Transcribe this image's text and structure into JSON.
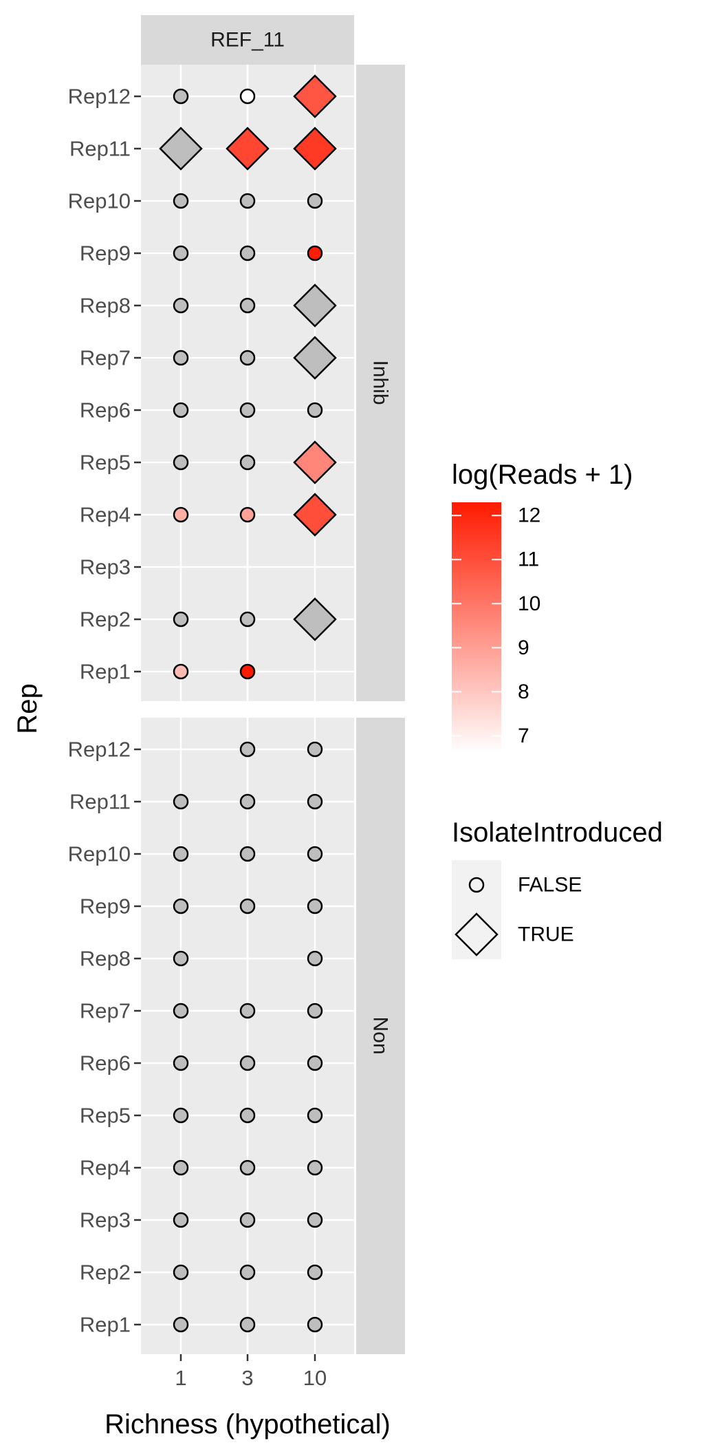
{
  "chart_data": {
    "type": "scatter",
    "facet_column_label": "REF_11",
    "facet_rows": [
      "Inhib",
      "Non"
    ],
    "x_categories": [
      "1",
      "3",
      "10"
    ],
    "y_categories": [
      "Rep1",
      "Rep2",
      "Rep3",
      "Rep4",
      "Rep5",
      "Rep6",
      "Rep7",
      "Rep8",
      "Rep9",
      "Rep10",
      "Rep11",
      "Rep12"
    ],
    "xlabel": "Richness (hypothetical)",
    "ylabel": "Rep",
    "grid": true,
    "legend_position": "right",
    "color_legend": {
      "title": "log(Reads + 1)",
      "ticks": [
        7,
        8,
        9,
        10,
        11,
        12
      ],
      "range": [
        6.6,
        12.3
      ],
      "low_color": "#ffffff",
      "high_color": "#ff1a00",
      "na_color": "#bebebe"
    },
    "shape_legend": {
      "title": "IsolateIntroduced",
      "items": [
        {
          "label": "FALSE",
          "shape": "circle"
        },
        {
          "label": "TRUE",
          "shape": "diamond"
        }
      ]
    },
    "points": [
      {
        "facet": "Inhib",
        "x": "1",
        "y": "Rep12",
        "introduced": false,
        "value": null
      },
      {
        "facet": "Inhib",
        "x": "3",
        "y": "Rep12",
        "introduced": false,
        "value": 6.6
      },
      {
        "facet": "Inhib",
        "x": "10",
        "y": "Rep12",
        "introduced": true,
        "value": 10.8
      },
      {
        "facet": "Inhib",
        "x": "1",
        "y": "Rep11",
        "introduced": true,
        "value": null
      },
      {
        "facet": "Inhib",
        "x": "3",
        "y": "Rep11",
        "introduced": true,
        "value": 11.2
      },
      {
        "facet": "Inhib",
        "x": "10",
        "y": "Rep11",
        "introduced": true,
        "value": 11.5
      },
      {
        "facet": "Inhib",
        "x": "1",
        "y": "Rep10",
        "introduced": false,
        "value": null
      },
      {
        "facet": "Inhib",
        "x": "3",
        "y": "Rep10",
        "introduced": false,
        "value": null
      },
      {
        "facet": "Inhib",
        "x": "10",
        "y": "Rep10",
        "introduced": false,
        "value": null
      },
      {
        "facet": "Inhib",
        "x": "1",
        "y": "Rep9",
        "introduced": false,
        "value": null
      },
      {
        "facet": "Inhib",
        "x": "3",
        "y": "Rep9",
        "introduced": false,
        "value": null
      },
      {
        "facet": "Inhib",
        "x": "10",
        "y": "Rep9",
        "introduced": false,
        "value": 12.2
      },
      {
        "facet": "Inhib",
        "x": "1",
        "y": "Rep8",
        "introduced": false,
        "value": null
      },
      {
        "facet": "Inhib",
        "x": "3",
        "y": "Rep8",
        "introduced": false,
        "value": null
      },
      {
        "facet": "Inhib",
        "x": "10",
        "y": "Rep8",
        "introduced": true,
        "value": null
      },
      {
        "facet": "Inhib",
        "x": "1",
        "y": "Rep7",
        "introduced": false,
        "value": null
      },
      {
        "facet": "Inhib",
        "x": "3",
        "y": "Rep7",
        "introduced": false,
        "value": null
      },
      {
        "facet": "Inhib",
        "x": "10",
        "y": "Rep7",
        "introduced": true,
        "value": null
      },
      {
        "facet": "Inhib",
        "x": "1",
        "y": "Rep6",
        "introduced": false,
        "value": null
      },
      {
        "facet": "Inhib",
        "x": "3",
        "y": "Rep6",
        "introduced": false,
        "value": null
      },
      {
        "facet": "Inhib",
        "x": "10",
        "y": "Rep6",
        "introduced": false,
        "value": null
      },
      {
        "facet": "Inhib",
        "x": "1",
        "y": "Rep5",
        "introduced": false,
        "value": null
      },
      {
        "facet": "Inhib",
        "x": "3",
        "y": "Rep5",
        "introduced": false,
        "value": null
      },
      {
        "facet": "Inhib",
        "x": "10",
        "y": "Rep5",
        "introduced": true,
        "value": 9.6
      },
      {
        "facet": "Inhib",
        "x": "1",
        "y": "Rep4",
        "introduced": false,
        "value": 8.6
      },
      {
        "facet": "Inhib",
        "x": "3",
        "y": "Rep4",
        "introduced": false,
        "value": 8.9
      },
      {
        "facet": "Inhib",
        "x": "10",
        "y": "Rep4",
        "introduced": true,
        "value": 11.0
      },
      {
        "facet": "Inhib",
        "x": "1",
        "y": "Rep2",
        "introduced": false,
        "value": null
      },
      {
        "facet": "Inhib",
        "x": "3",
        "y": "Rep2",
        "introduced": false,
        "value": null
      },
      {
        "facet": "Inhib",
        "x": "10",
        "y": "Rep2",
        "introduced": true,
        "value": null
      },
      {
        "facet": "Inhib",
        "x": "1",
        "y": "Rep1",
        "introduced": false,
        "value": 8.3
      },
      {
        "facet": "Inhib",
        "x": "3",
        "y": "Rep1",
        "introduced": false,
        "value": 12.3
      },
      {
        "facet": "Non",
        "x": "3",
        "y": "Rep12",
        "introduced": false,
        "value": null
      },
      {
        "facet": "Non",
        "x": "10",
        "y": "Rep12",
        "introduced": false,
        "value": null
      },
      {
        "facet": "Non",
        "x": "1",
        "y": "Rep11",
        "introduced": false,
        "value": null
      },
      {
        "facet": "Non",
        "x": "3",
        "y": "Rep11",
        "introduced": false,
        "value": null
      },
      {
        "facet": "Non",
        "x": "10",
        "y": "Rep11",
        "introduced": false,
        "value": null
      },
      {
        "facet": "Non",
        "x": "1",
        "y": "Rep10",
        "introduced": false,
        "value": null
      },
      {
        "facet": "Non",
        "x": "3",
        "y": "Rep10",
        "introduced": false,
        "value": null
      },
      {
        "facet": "Non",
        "x": "10",
        "y": "Rep10",
        "introduced": false,
        "value": null
      },
      {
        "facet": "Non",
        "x": "1",
        "y": "Rep9",
        "introduced": false,
        "value": null
      },
      {
        "facet": "Non",
        "x": "3",
        "y": "Rep9",
        "introduced": false,
        "value": null
      },
      {
        "facet": "Non",
        "x": "10",
        "y": "Rep9",
        "introduced": false,
        "value": null
      },
      {
        "facet": "Non",
        "x": "1",
        "y": "Rep8",
        "introduced": false,
        "value": null
      },
      {
        "facet": "Non",
        "x": "10",
        "y": "Rep8",
        "introduced": false,
        "value": null
      },
      {
        "facet": "Non",
        "x": "1",
        "y": "Rep7",
        "introduced": false,
        "value": null
      },
      {
        "facet": "Non",
        "x": "3",
        "y": "Rep7",
        "introduced": false,
        "value": null
      },
      {
        "facet": "Non",
        "x": "10",
        "y": "Rep7",
        "introduced": false,
        "value": null
      },
      {
        "facet": "Non",
        "x": "1",
        "y": "Rep6",
        "introduced": false,
        "value": null
      },
      {
        "facet": "Non",
        "x": "3",
        "y": "Rep6",
        "introduced": false,
        "value": null
      },
      {
        "facet": "Non",
        "x": "10",
        "y": "Rep6",
        "introduced": false,
        "value": null
      },
      {
        "facet": "Non",
        "x": "1",
        "y": "Rep5",
        "introduced": false,
        "value": null
      },
      {
        "facet": "Non",
        "x": "3",
        "y": "Rep5",
        "introduced": false,
        "value": null
      },
      {
        "facet": "Non",
        "x": "10",
        "y": "Rep5",
        "introduced": false,
        "value": null
      },
      {
        "facet": "Non",
        "x": "1",
        "y": "Rep4",
        "introduced": false,
        "value": null
      },
      {
        "facet": "Non",
        "x": "3",
        "y": "Rep4",
        "introduced": false,
        "value": null
      },
      {
        "facet": "Non",
        "x": "10",
        "y": "Rep4",
        "introduced": false,
        "value": null
      },
      {
        "facet": "Non",
        "x": "1",
        "y": "Rep3",
        "introduced": false,
        "value": null
      },
      {
        "facet": "Non",
        "x": "3",
        "y": "Rep3",
        "introduced": false,
        "value": null
      },
      {
        "facet": "Non",
        "x": "10",
        "y": "Rep3",
        "introduced": false,
        "value": null
      },
      {
        "facet": "Non",
        "x": "1",
        "y": "Rep2",
        "introduced": false,
        "value": null
      },
      {
        "facet": "Non",
        "x": "3",
        "y": "Rep2",
        "introduced": false,
        "value": null
      },
      {
        "facet": "Non",
        "x": "10",
        "y": "Rep2",
        "introduced": false,
        "value": null
      },
      {
        "facet": "Non",
        "x": "1",
        "y": "Rep1",
        "introduced": false,
        "value": null
      },
      {
        "facet": "Non",
        "x": "3",
        "y": "Rep1",
        "introduced": false,
        "value": null
      },
      {
        "facet": "Non",
        "x": "10",
        "y": "Rep1",
        "introduced": false,
        "value": null
      }
    ]
  }
}
